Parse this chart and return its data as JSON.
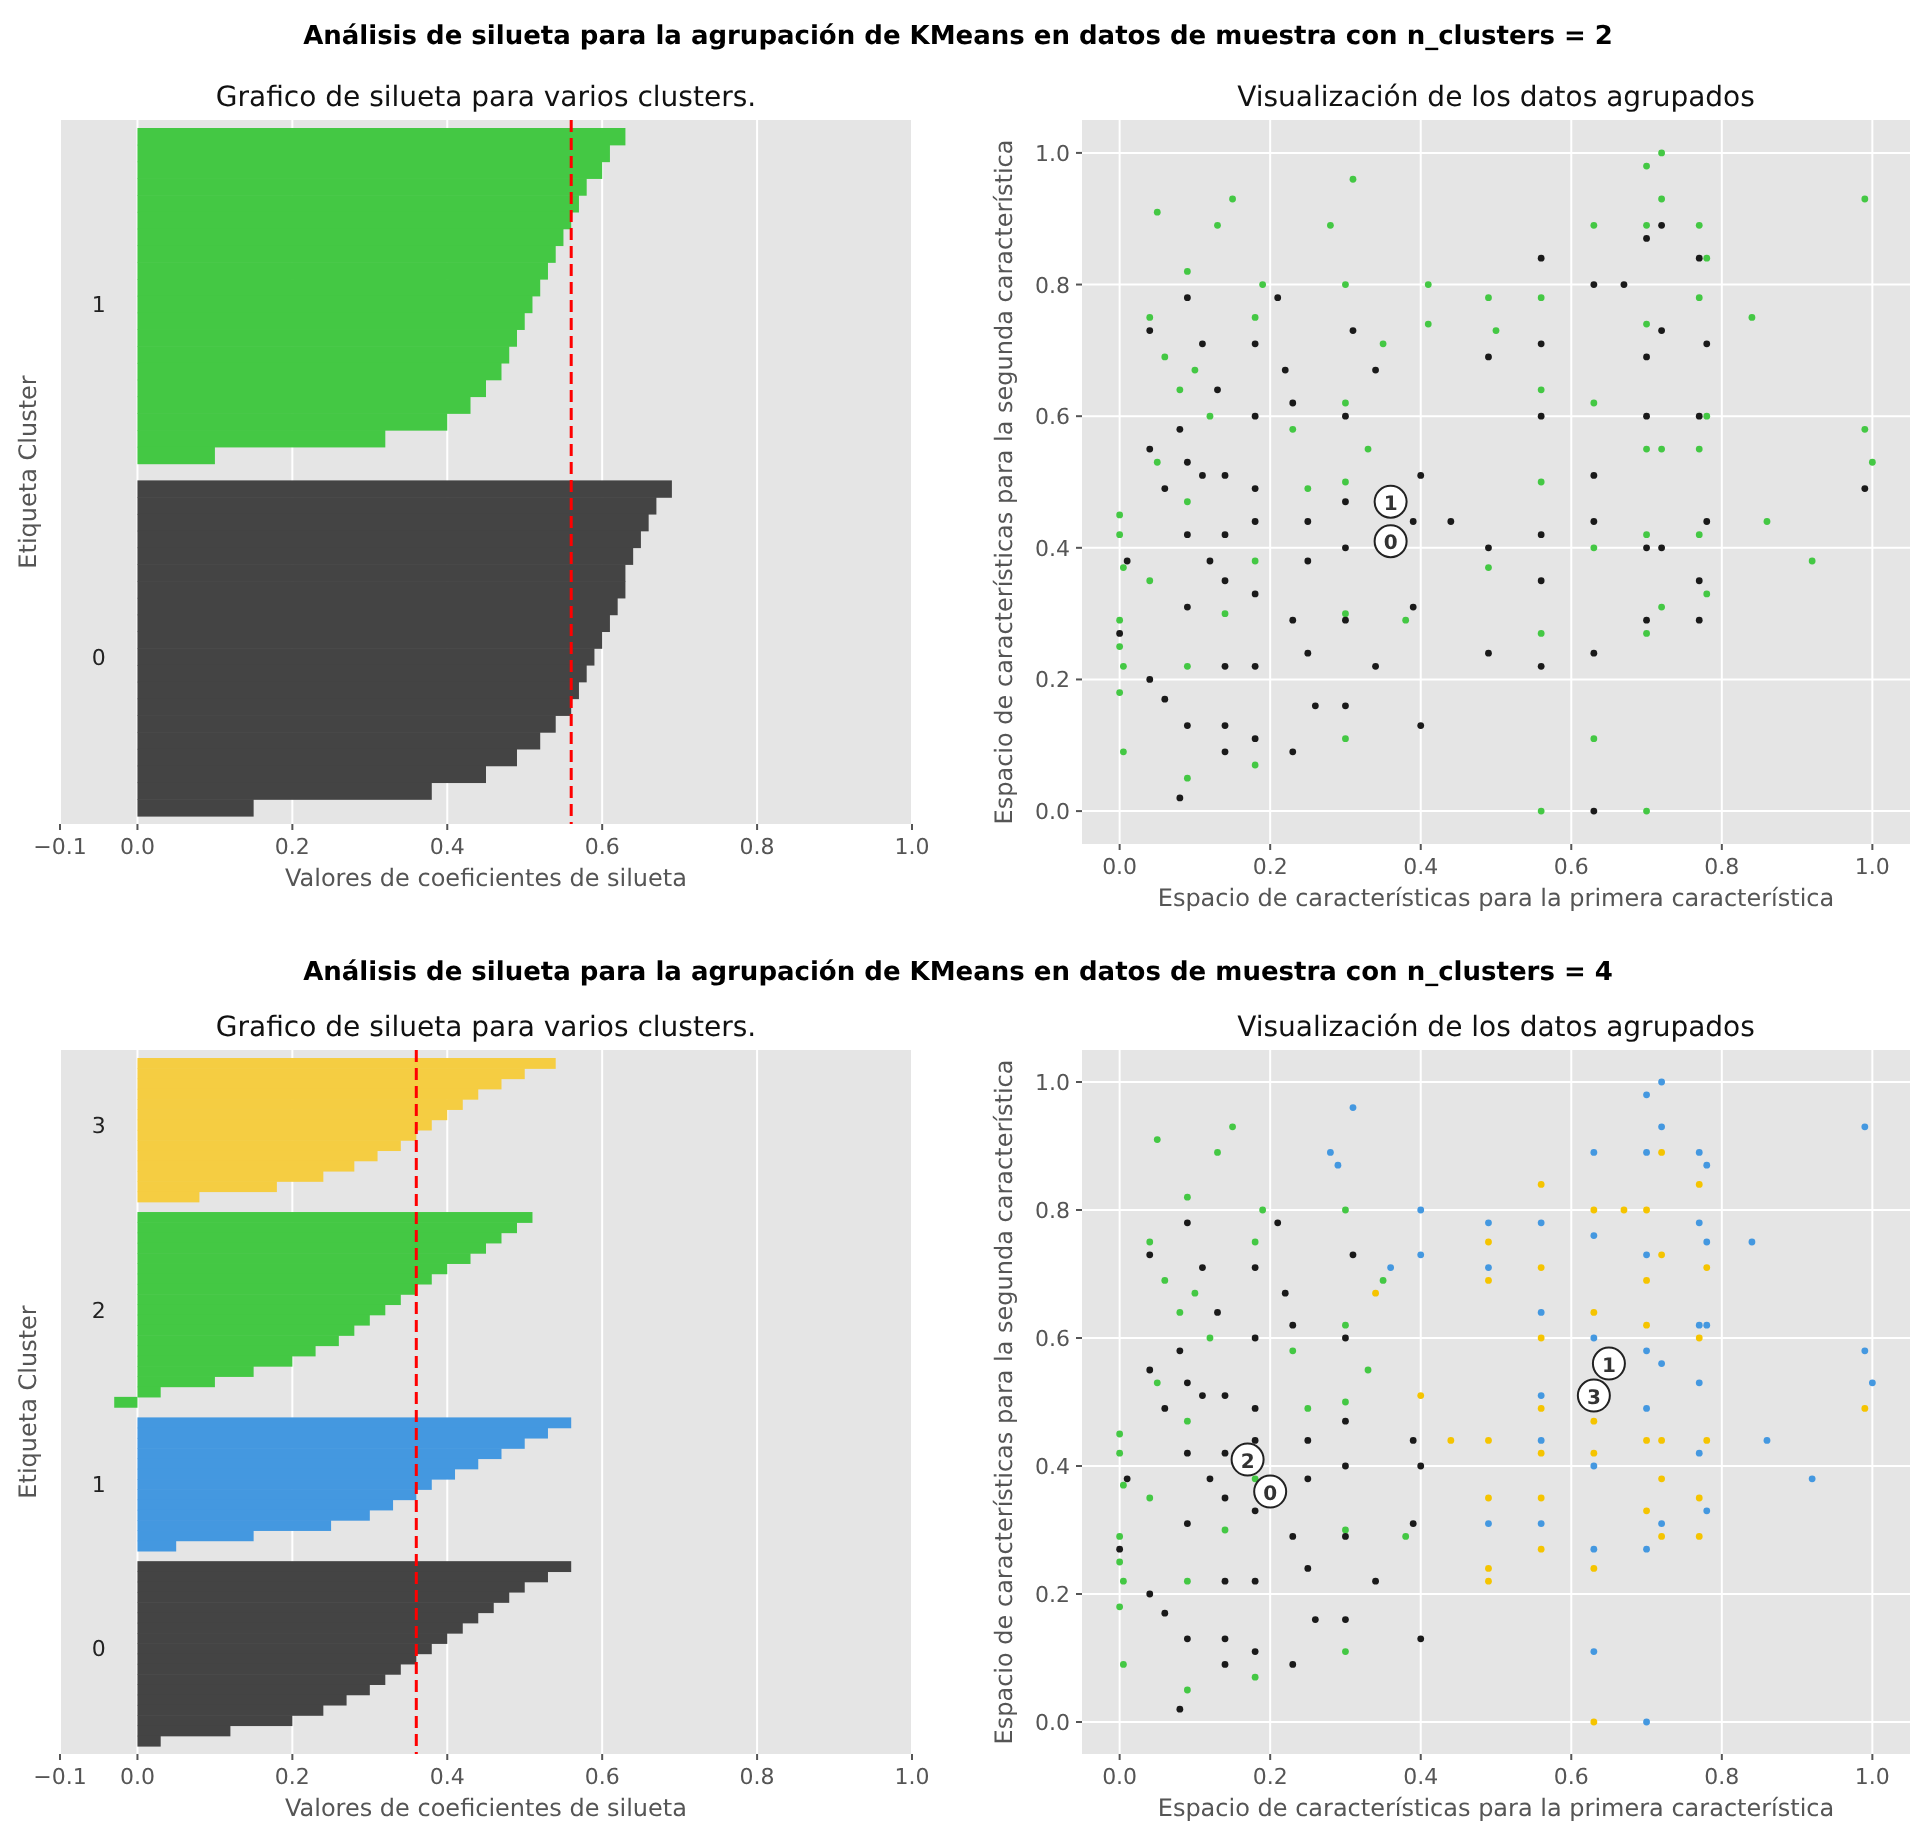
{
  "chart_data": [
    {
      "type": "other",
      "title": "Análisis de silueta para la agrupación de KMeans en datos de muestra con n_clusters = 2"
    },
    {
      "type": "bar",
      "orientation": "horizontal",
      "title": "Grafico de silueta para varios clusters.",
      "xlabel": "Valores de coeficientes de silueta",
      "ylabel": "Etiqueta Cluster",
      "grid": "x",
      "categories": [
        null,
        null,
        null,
        null,
        null,
        null,
        null,
        null,
        null,
        null,
        "1",
        null,
        null,
        null,
        null,
        null,
        null,
        null,
        null,
        null,
        null,
        null,
        null,
        null,
        null,
        null,
        null,
        null,
        null,
        null,
        null,
        "0",
        null,
        null,
        null,
        null,
        null,
        null,
        null,
        null,
        null
      ],
      "values": [
        0.63,
        0.61,
        0.6,
        0.58,
        0.57,
        0.56,
        0.55,
        0.54,
        0.53,
        0.52,
        0.51,
        0.5,
        0.49,
        0.48,
        0.47,
        0.45,
        0.43,
        0.4,
        0.32,
        0.1,
        null,
        0.69,
        0.67,
        0.66,
        0.65,
        0.64,
        0.63,
        0.63,
        0.62,
        0.61,
        0.6,
        0.59,
        0.58,
        0.57,
        0.56,
        0.54,
        0.52,
        0.49,
        0.45,
        0.38,
        0.15
      ],
      "colors": [
        "#44c844",
        "#44c844",
        "#44c844",
        "#44c844",
        "#44c844",
        "#44c844",
        "#44c844",
        "#44c844",
        "#44c844",
        "#44c844",
        "#44c844",
        "#44c844",
        "#44c844",
        "#44c844",
        "#44c844",
        "#44c844",
        "#44c844",
        "#44c844",
        "#44c844",
        "#44c844",
        null,
        "#444444",
        "#444444",
        "#444444",
        "#444444",
        "#444444",
        "#444444",
        "#444444",
        "#444444",
        "#444444",
        "#444444",
        "#444444",
        "#444444",
        "#444444",
        "#444444",
        "#444444",
        "#444444",
        "#444444",
        "#444444",
        "#444444",
        "#444444"
      ],
      "xlim": [
        -0.1,
        1
      ],
      "xticks": [
        {
          "value": -0.1,
          "label": "−0.1"
        },
        {
          "value": 0,
          "label": "0.0"
        },
        {
          "value": 0.2,
          "label": "0.2"
        },
        {
          "value": 0.4,
          "label": "0.4"
        },
        {
          "value": 0.6,
          "label": "0.6"
        },
        {
          "value": 0.8,
          "label": "0.8"
        },
        {
          "value": 1,
          "label": "1.0"
        }
      ],
      "ref_lines": [
        {
          "axis": "x",
          "value": 0.56,
          "color": "#ff0000",
          "line_style": "dashed"
        }
      ]
    },
    {
      "type": "scatter",
      "title": "Visualización de los datos agrupados",
      "xlabel": "Espacio de características para la primera característica",
      "ylabel": "Espacio de características para la segunda característica",
      "grid": true,
      "marker": "circle",
      "xlim": [
        -0.05,
        1.05
      ],
      "ylim": [
        -0.05,
        1.05
      ],
      "xticks": [
        {
          "value": 0,
          "label": "0.0"
        },
        {
          "value": 0.2,
          "label": "0.2"
        },
        {
          "value": 0.4,
          "label": "0.4"
        },
        {
          "value": 0.6,
          "label": "0.6"
        },
        {
          "value": 0.8,
          "label": "0.8"
        },
        {
          "value": 1,
          "label": "1.0"
        }
      ],
      "yticks": [
        {
          "value": 0,
          "label": "0.0"
        },
        {
          "value": 0.2,
          "label": "0.2"
        },
        {
          "value": 0.4,
          "label": "0.4"
        },
        {
          "value": 0.6,
          "label": "0.6"
        },
        {
          "value": 0.8,
          "label": "0.8"
        },
        {
          "value": 1,
          "label": "1.0"
        }
      ],
      "series": [
        {
          "color": "#44c844",
          "x": [
            0,
            0,
            0.005,
            0,
            0,
            0.005,
            0,
            0.005,
            0.05,
            0.04,
            0.06,
            0.05,
            0.04,
            0.08,
            0.09,
            0.1,
            0.09,
            0.09,
            0.09,
            0.13,
            0.15,
            0.12,
            0.14,
            0.18,
            0.19,
            0.18,
            0.18,
            0.23,
            0.25,
            0.28,
            0.31,
            0.3,
            0.3,
            0.3,
            0.3,
            0.3,
            0.33,
            0.35,
            0.38,
            0.41,
            0.41,
            0.49,
            0.5,
            0.49,
            0.56,
            0.56,
            0.56,
            0.56,
            0.56,
            0.63,
            0.63,
            0.63,
            0.63,
            0.7,
            0.7,
            0.7,
            0.7,
            0.7,
            0.7,
            0.7,
            0.72,
            0.72,
            0.72,
            0.72,
            0.77,
            0.77,
            0.77,
            0.77,
            0.78,
            0.78,
            0.78,
            0.84,
            0.86,
            0.92,
            0.99,
            0.99,
            1.0
          ],
          "values": [
            0.45,
            0.42,
            0.37,
            0.29,
            0.25,
            0.22,
            0.18,
            0.09,
            0.91,
            0.75,
            0.69,
            0.53,
            0.35,
            0.64,
            0.82,
            0.67,
            0.47,
            0.22,
            0.05,
            0.89,
            0.93,
            0.6,
            0.3,
            0.75,
            0.8,
            0.38,
            0.07,
            0.58,
            0.49,
            0.89,
            0.96,
            0.8,
            0.62,
            0.5,
            0.3,
            0.11,
            0.55,
            0.71,
            0.29,
            0.8,
            0.74,
            0.78,
            0.73,
            0.37,
            0.78,
            0.64,
            0.5,
            0.27,
            0.0,
            0.89,
            0.62,
            0.4,
            0.11,
            0.98,
            0.89,
            0.74,
            0.55,
            0.42,
            0.27,
            0.0,
            1.0,
            0.93,
            0.55,
            0.31,
            0.89,
            0.78,
            0.55,
            0.42,
            0.84,
            0.6,
            0.33,
            0.75,
            0.44,
            0.38,
            0.93,
            0.58,
            0.53
          ]
        },
        {
          "color": "#1a1a1a",
          "x": [
            0,
            0.01,
            0.04,
            0.04,
            0.04,
            0.06,
            0.06,
            0.08,
            0.08,
            0.09,
            0.09,
            0.09,
            0.09,
            0.09,
            0.11,
            0.11,
            0.12,
            0.13,
            0.14,
            0.14,
            0.14,
            0.14,
            0.14,
            0.14,
            0.18,
            0.18,
            0.18,
            0.18,
            0.18,
            0.18,
            0.18,
            0.21,
            0.22,
            0.23,
            0.23,
            0.23,
            0.25,
            0.25,
            0.25,
            0.26,
            0.3,
            0.3,
            0.3,
            0.3,
            0.3,
            0.31,
            0.34,
            0.34,
            0.39,
            0.39,
            0.4,
            0.4,
            0.44,
            0.49,
            0.49,
            0.49,
            0.56,
            0.56,
            0.56,
            0.56,
            0.56,
            0.56,
            0.63,
            0.63,
            0.63,
            0.63,
            0.63,
            0.67,
            0.7,
            0.7,
            0.7,
            0.7,
            0.7,
            0.72,
            0.72,
            0.72,
            0.77,
            0.77,
            0.77,
            0.77,
            0.78,
            0.78,
            0.99
          ],
          "values": [
            0.27,
            0.38,
            0.73,
            0.55,
            0.2,
            0.49,
            0.17,
            0.58,
            0.02,
            0.78,
            0.53,
            0.42,
            0.31,
            0.13,
            0.71,
            0.51,
            0.38,
            0.64,
            0.51,
            0.42,
            0.35,
            0.22,
            0.13,
            0.09,
            0.71,
            0.6,
            0.49,
            0.44,
            0.33,
            0.22,
            0.11,
            0.78,
            0.67,
            0.62,
            0.29,
            0.09,
            0.44,
            0.38,
            0.24,
            0.16,
            0.6,
            0.47,
            0.4,
            0.29,
            0.16,
            0.73,
            0.67,
            0.22,
            0.44,
            0.31,
            0.51,
            0.13,
            0.44,
            0.69,
            0.4,
            0.24,
            0.84,
            0.71,
            0.6,
            0.42,
            0.35,
            0.22,
            0.8,
            0.51,
            0.44,
            0.24,
            0.0,
            0.8,
            0.87,
            0.69,
            0.6,
            0.4,
            0.29,
            0.89,
            0.73,
            0.4,
            0.84,
            0.6,
            0.35,
            0.29,
            0.71,
            0.44,
            0.49
          ]
        },
        {
          "color": "#ffffff",
          "x": [
            0.36,
            0.36
          ],
          "values": [
            0.41,
            0.47
          ]
        }
      ],
      "annotations": [
        {
          "text": "0",
          "x": 0.36,
          "y": 0.41
        },
        {
          "text": "1",
          "x": 0.36,
          "y": 0.47
        }
      ]
    },
    {
      "type": "other",
      "title": "Análisis de silueta para la agrupación de KMeans en datos de muestra con n_clusters = 4"
    },
    {
      "type": "bar",
      "orientation": "horizontal",
      "title": "Grafico de silueta para varios clusters.",
      "xlabel": "Valores de coeficientes de silueta",
      "ylabel": "Etiqueta Cluster",
      "grid": "x",
      "categories": [
        null,
        null,
        null,
        null,
        null,
        null,
        "3",
        null,
        null,
        null,
        null,
        null,
        null,
        null,
        null,
        null,
        null,
        null,
        null,
        null,
        null,
        null,
        null,
        null,
        "2",
        null,
        null,
        null,
        null,
        null,
        null,
        null,
        null,
        null,
        null,
        null,
        null,
        null,
        null,
        null,
        null,
        "1",
        null,
        null,
        null,
        null,
        null,
        null,
        null,
        null,
        null,
        null,
        null,
        null,
        null,
        null,
        null,
        "0",
        null,
        null,
        null,
        null,
        null,
        null,
        null,
        null,
        null
      ],
      "values": [
        0.54,
        0.5,
        0.47,
        0.44,
        0.42,
        0.4,
        0.38,
        0.36,
        0.34,
        0.31,
        0.28,
        0.24,
        0.18,
        0.08,
        null,
        0.51,
        0.49,
        0.47,
        0.45,
        0.43,
        0.4,
        0.38,
        0.36,
        0.34,
        0.32,
        0.3,
        0.28,
        0.26,
        0.23,
        0.2,
        0.15,
        0.1,
        0.03,
        -0.03,
        null,
        0.56,
        0.53,
        0.5,
        0.47,
        0.44,
        0.41,
        0.38,
        0.36,
        0.33,
        0.3,
        0.25,
        0.15,
        0.05,
        null,
        0.56,
        0.53,
        0.5,
        0.48,
        0.46,
        0.44,
        0.42,
        0.4,
        0.38,
        0.36,
        0.34,
        0.32,
        0.3,
        0.27,
        0.24,
        0.2,
        0.12,
        0.03
      ],
      "colors": [
        "#f5cd42",
        "#f5cd42",
        "#f5cd42",
        "#f5cd42",
        "#f5cd42",
        "#f5cd42",
        "#f5cd42",
        "#f5cd42",
        "#f5cd42",
        "#f5cd42",
        "#f5cd42",
        "#f5cd42",
        "#f5cd42",
        "#f5cd42",
        null,
        "#44c844",
        "#44c844",
        "#44c844",
        "#44c844",
        "#44c844",
        "#44c844",
        "#44c844",
        "#44c844",
        "#44c844",
        "#44c844",
        "#44c844",
        "#44c844",
        "#44c844",
        "#44c844",
        "#44c844",
        "#44c844",
        "#44c844",
        "#44c844",
        "#44c844",
        null,
        "#4498e0",
        "#4498e0",
        "#4498e0",
        "#4498e0",
        "#4498e0",
        "#4498e0",
        "#4498e0",
        "#4498e0",
        "#4498e0",
        "#4498e0",
        "#4498e0",
        "#4498e0",
        "#4498e0",
        null,
        "#444444",
        "#444444",
        "#444444",
        "#444444",
        "#444444",
        "#444444",
        "#444444",
        "#444444",
        "#444444",
        "#444444",
        "#444444",
        "#444444",
        "#444444",
        "#444444",
        "#444444",
        "#444444",
        "#444444",
        "#444444"
      ],
      "xlim": [
        -0.1,
        1
      ],
      "xticks": [
        {
          "value": -0.1,
          "label": "−0.1"
        },
        {
          "value": 0,
          "label": "0.0"
        },
        {
          "value": 0.2,
          "label": "0.2"
        },
        {
          "value": 0.4,
          "label": "0.4"
        },
        {
          "value": 0.6,
          "label": "0.6"
        },
        {
          "value": 0.8,
          "label": "0.8"
        },
        {
          "value": 1,
          "label": "1.0"
        }
      ],
      "ref_lines": [
        {
          "axis": "x",
          "value": 0.36,
          "color": "#ff0000",
          "line_style": "dashed"
        }
      ]
    },
    {
      "type": "scatter",
      "title": "Visualización de los datos agrupados",
      "xlabel": "Espacio de características para la primera característica",
      "ylabel": "Espacio de características para la segunda característica",
      "grid": true,
      "marker": "circle",
      "xlim": [
        -0.05,
        1.05
      ],
      "ylim": [
        -0.05,
        1.05
      ],
      "xticks": [
        {
          "value": 0,
          "label": "0.0"
        },
        {
          "value": 0.2,
          "label": "0.2"
        },
        {
          "value": 0.4,
          "label": "0.4"
        },
        {
          "value": 0.6,
          "label": "0.6"
        },
        {
          "value": 0.8,
          "label": "0.8"
        },
        {
          "value": 1,
          "label": "1.0"
        }
      ],
      "yticks": [
        {
          "value": 0,
          "label": "0.0"
        },
        {
          "value": 0.2,
          "label": "0.2"
        },
        {
          "value": 0.4,
          "label": "0.4"
        },
        {
          "value": 0.6,
          "label": "0.6"
        },
        {
          "value": 0.8,
          "label": "0.8"
        },
        {
          "value": 1,
          "label": "1.0"
        }
      ],
      "series": [
        {
          "color": "#44c844",
          "x": [
            0,
            0,
            0.005,
            0,
            0,
            0.005,
            0,
            0.005,
            0.05,
            0.04,
            0.06,
            0.05,
            0.04,
            0.08,
            0.09,
            0.1,
            0.09,
            0.09,
            0.09,
            0.13,
            0.15,
            0.12,
            0.14,
            0.18,
            0.19,
            0.18,
            0.18,
            0.23,
            0.25,
            0.3,
            0.3,
            0.3,
            0.3,
            0.3,
            0.33,
            0.35,
            0.38
          ],
          "values": [
            0.45,
            0.42,
            0.37,
            0.29,
            0.25,
            0.22,
            0.18,
            0.09,
            0.91,
            0.75,
            0.69,
            0.53,
            0.35,
            0.64,
            0.82,
            0.67,
            0.47,
            0.22,
            0.05,
            0.89,
            0.93,
            0.6,
            0.3,
            0.75,
            0.8,
            0.38,
            0.07,
            0.58,
            0.49,
            0.8,
            0.62,
            0.5,
            0.3,
            0.11,
            0.55,
            0.69,
            0.29
          ]
        },
        {
          "color": "#1a1a1a",
          "x": [
            0,
            0.01,
            0.04,
            0.04,
            0.04,
            0.06,
            0.06,
            0.08,
            0.08,
            0.09,
            0.09,
            0.09,
            0.09,
            0.09,
            0.11,
            0.11,
            0.12,
            0.13,
            0.14,
            0.14,
            0.14,
            0.14,
            0.14,
            0.14,
            0.18,
            0.18,
            0.18,
            0.18,
            0.18,
            0.18,
            0.18,
            0.21,
            0.22,
            0.23,
            0.23,
            0.23,
            0.25,
            0.25,
            0.25,
            0.26,
            0.3,
            0.3,
            0.3,
            0.3,
            0.3,
            0.31,
            0.34,
            0.39,
            0.39,
            0.4,
            0.4
          ],
          "values": [
            0.27,
            0.38,
            0.73,
            0.55,
            0.2,
            0.49,
            0.17,
            0.58,
            0.02,
            0.78,
            0.53,
            0.42,
            0.31,
            0.13,
            0.71,
            0.51,
            0.38,
            0.64,
            0.51,
            0.42,
            0.35,
            0.22,
            0.13,
            0.09,
            0.71,
            0.6,
            0.49,
            0.44,
            0.33,
            0.22,
            0.11,
            0.78,
            0.67,
            0.62,
            0.29,
            0.09,
            0.44,
            0.38,
            0.24,
            0.16,
            0.6,
            0.47,
            0.4,
            0.29,
            0.16,
            0.73,
            0.22,
            0.44,
            0.31,
            0.4,
            0.13
          ]
        },
        {
          "color": "#4498e0",
          "x": [
            0.28,
            0.29,
            0.31,
            0.36,
            0.4,
            0.4,
            0.49,
            0.49,
            0.49,
            0.56,
            0.56,
            0.56,
            0.56,
            0.56,
            0.63,
            0.63,
            0.63,
            0.63,
            0.63,
            0.63,
            0.7,
            0.7,
            0.7,
            0.7,
            0.7,
            0.7,
            0.7,
            0.72,
            0.72,
            0.72,
            0.72,
            0.77,
            0.77,
            0.77,
            0.77,
            0.77,
            0.78,
            0.78,
            0.78,
            0.78,
            0.84,
            0.86,
            0.92,
            0.99,
            0.99,
            1.0
          ],
          "values": [
            0.89,
            0.87,
            0.96,
            0.71,
            0.8,
            0.73,
            0.78,
            0.71,
            0.31,
            0.78,
            0.64,
            0.51,
            0.44,
            0.31,
            0.89,
            0.76,
            0.6,
            0.4,
            0.27,
            0.11,
            0.98,
            0.89,
            0.73,
            0.58,
            0.49,
            0.27,
            0.0,
            1.0,
            0.93,
            0.56,
            0.31,
            0.89,
            0.78,
            0.62,
            0.53,
            0.42,
            0.87,
            0.75,
            0.62,
            0.33,
            0.75,
            0.44,
            0.38,
            0.93,
            0.58,
            0.53
          ]
        },
        {
          "color": "#f5c400",
          "x": [
            0.34,
            0.4,
            0.44,
            0.49,
            0.49,
            0.49,
            0.49,
            0.49,
            0.49,
            0.56,
            0.56,
            0.56,
            0.56,
            0.56,
            0.56,
            0.56,
            0.63,
            0.63,
            0.63,
            0.63,
            0.63,
            0.63,
            0.67,
            0.7,
            0.7,
            0.7,
            0.7,
            0.7,
            0.72,
            0.72,
            0.72,
            0.72,
            0.72,
            0.77,
            0.77,
            0.77,
            0.77,
            0.78,
            0.78,
            0.99
          ],
          "values": [
            0.67,
            0.51,
            0.44,
            0.75,
            0.69,
            0.44,
            0.35,
            0.24,
            0.22,
            0.84,
            0.71,
            0.6,
            0.49,
            0.42,
            0.35,
            0.27,
            0.8,
            0.64,
            0.47,
            0.42,
            0.24,
            0.0,
            0.8,
            0.8,
            0.69,
            0.62,
            0.44,
            0.33,
            0.89,
            0.73,
            0.44,
            0.38,
            0.29,
            0.84,
            0.6,
            0.35,
            0.29,
            0.71,
            0.44,
            0.49
          ]
        },
        {
          "color": "#ffffff",
          "x": [
            0.2,
            0.65,
            0.17,
            0.63
          ],
          "values": [
            0.36,
            0.56,
            0.41,
            0.51
          ]
        }
      ],
      "annotations": [
        {
          "text": "0",
          "x": 0.2,
          "y": 0.36
        },
        {
          "text": "1",
          "x": 0.65,
          "y": 0.56
        },
        {
          "text": "2",
          "x": 0.17,
          "y": 0.41
        },
        {
          "text": "3",
          "x": 0.63,
          "y": 0.51
        }
      ]
    }
  ]
}
